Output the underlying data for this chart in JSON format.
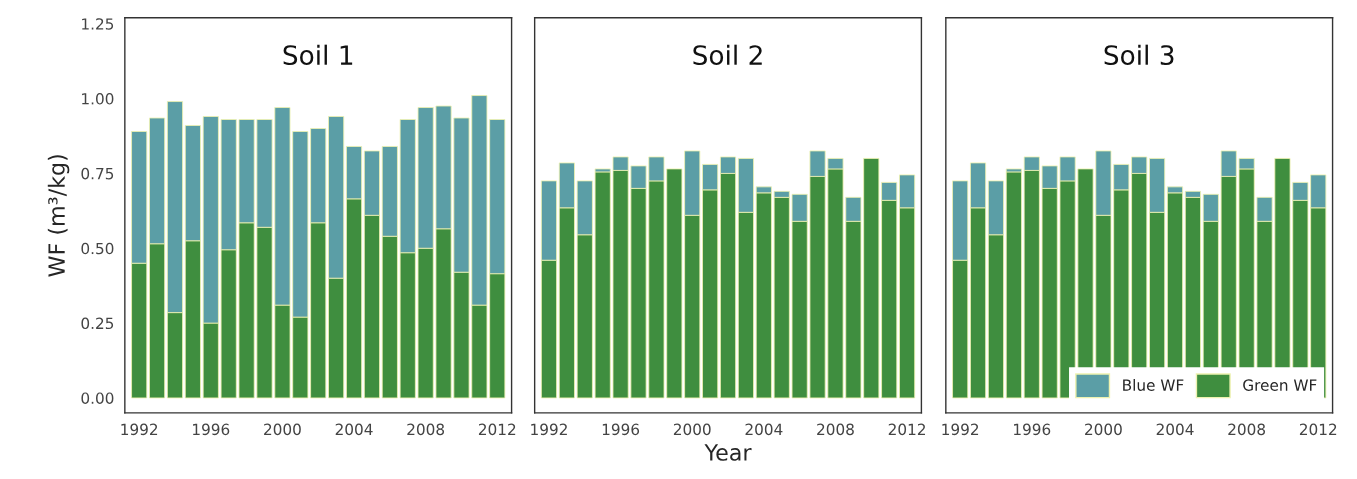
{
  "chart_data": [
    {
      "type": "bar",
      "stacked": true,
      "title": "Soil 1",
      "ylabel": "WF (m³/kg)",
      "x": [
        1992,
        1993,
        1994,
        1995,
        1996,
        1997,
        1998,
        1999,
        2000,
        2001,
        2002,
        2003,
        2004,
        2005,
        2006,
        2007,
        2008,
        2009,
        2010,
        2011,
        2012
      ],
      "series": [
        {
          "color": "#3f8e3f",
          "values": [
            0.45,
            0.515,
            0.285,
            0.525,
            0.25,
            0.495,
            0.585,
            0.57,
            0.31,
            0.27,
            0.585,
            0.4,
            0.665,
            0.61,
            0.54,
            0.485,
            0.5,
            0.565,
            0.42,
            0.31,
            0.415
          ]
        },
        {
          "color": "#5b9ea6",
          "values": [
            0.44,
            0.42,
            0.705,
            0.385,
            0.69,
            0.435,
            0.345,
            0.36,
            0.66,
            0.62,
            0.315,
            0.54,
            0.175,
            0.215,
            0.3,
            0.445,
            0.47,
            0.41,
            0.515,
            0.7,
            0.515
          ]
        }
      ],
      "xlim": [
        1991.2,
        2012.8
      ],
      "xticks": [
        1992,
        1996,
        2000,
        2004,
        2008,
        2012
      ],
      "ylim": [
        -0.05,
        1.27
      ],
      "yticks": [
        {
          "value": 0,
          "label": "0.00"
        },
        {
          "value": 0.25,
          "label": "0.25"
        },
        {
          "value": 0.5,
          "label": "0.50"
        },
        {
          "value": 0.75,
          "label": "0.75"
        },
        {
          "value": 1,
          "label": "1.00"
        },
        {
          "value": 1.25,
          "label": "1.25"
        }
      ],
      "grid": false,
      "legend": false
    },
    {
      "type": "bar",
      "stacked": true,
      "title": "Soil 2",
      "xlabel": "Year",
      "x": [
        1992,
        1993,
        1994,
        1995,
        1996,
        1997,
        1998,
        1999,
        2000,
        2001,
        2002,
        2003,
        2004,
        2005,
        2006,
        2007,
        2008,
        2009,
        2010,
        2011,
        2012
      ],
      "series": [
        {
          "color": "#3f8e3f",
          "values": [
            0.46,
            0.635,
            0.545,
            0.755,
            0.76,
            0.7,
            0.725,
            0.765,
            0.61,
            0.695,
            0.75,
            0.62,
            0.685,
            0.67,
            0.59,
            0.74,
            0.765,
            0.59,
            0.8,
            0.66,
            0.635
          ]
        },
        {
          "color": "#5b9ea6",
          "values": [
            0.265,
            0.15,
            0.18,
            0.01,
            0.045,
            0.075,
            0.08,
            0,
            0.215,
            0.085,
            0.055,
            0.18,
            0.02,
            0.02,
            0.09,
            0.085,
            0.035,
            0.08,
            0,
            0.06,
            0.11
          ]
        }
      ],
      "xlim": [
        1991.2,
        2012.8
      ],
      "xticks": [
        1992,
        1996,
        2000,
        2004,
        2008,
        2012
      ],
      "ylim": [
        -0.05,
        1.27
      ],
      "yticks": [
        {
          "value": 0,
          "label": null
        },
        {
          "value": 0.25,
          "label": null
        },
        {
          "value": 0.5,
          "label": null
        },
        {
          "value": 0.75,
          "label": null
        },
        {
          "value": 1,
          "label": null
        },
        {
          "value": 1.25,
          "label": null
        }
      ],
      "tick_labels": "x",
      "grid": false,
      "legend": false
    },
    {
      "type": "bar",
      "stacked": true,
      "title": "Soil 3",
      "x": [
        1992,
        1993,
        1994,
        1995,
        1996,
        1997,
        1998,
        1999,
        2000,
        2001,
        2002,
        2003,
        2004,
        2005,
        2006,
        2007,
        2008,
        2009,
        2010,
        2011,
        2012
      ],
      "series": [
        {
          "name": "Green WF",
          "color": "#3f8e3f",
          "values": [
            0.46,
            0.635,
            0.545,
            0.755,
            0.76,
            0.7,
            0.725,
            0.765,
            0.61,
            0.695,
            0.75,
            0.62,
            0.685,
            0.67,
            0.59,
            0.74,
            0.765,
            0.59,
            0.8,
            0.66,
            0.635
          ]
        },
        {
          "name": "Blue WF",
          "color": "#5b9ea6",
          "values": [
            0.265,
            0.15,
            0.18,
            0.01,
            0.045,
            0.075,
            0.08,
            0,
            0.215,
            0.085,
            0.055,
            0.18,
            0.02,
            0.02,
            0.09,
            0.085,
            0.035,
            0.08,
            0,
            0.06,
            0.11
          ]
        }
      ],
      "xlim": [
        1991.2,
        2012.8
      ],
      "xticks": [
        1992,
        1996,
        2000,
        2004,
        2008,
        2012
      ],
      "ylim": [
        -0.05,
        1.27
      ],
      "yticks": [
        {
          "value": 0,
          "label": null
        },
        {
          "value": 0.25,
          "label": null
        },
        {
          "value": 0.5,
          "label": null
        },
        {
          "value": 0.75,
          "label": null
        },
        {
          "value": 1,
          "label": null
        },
        {
          "value": 1.25,
          "label": null
        }
      ],
      "tick_labels": "x",
      "grid": false,
      "legend": "bottom right"
    }
  ]
}
